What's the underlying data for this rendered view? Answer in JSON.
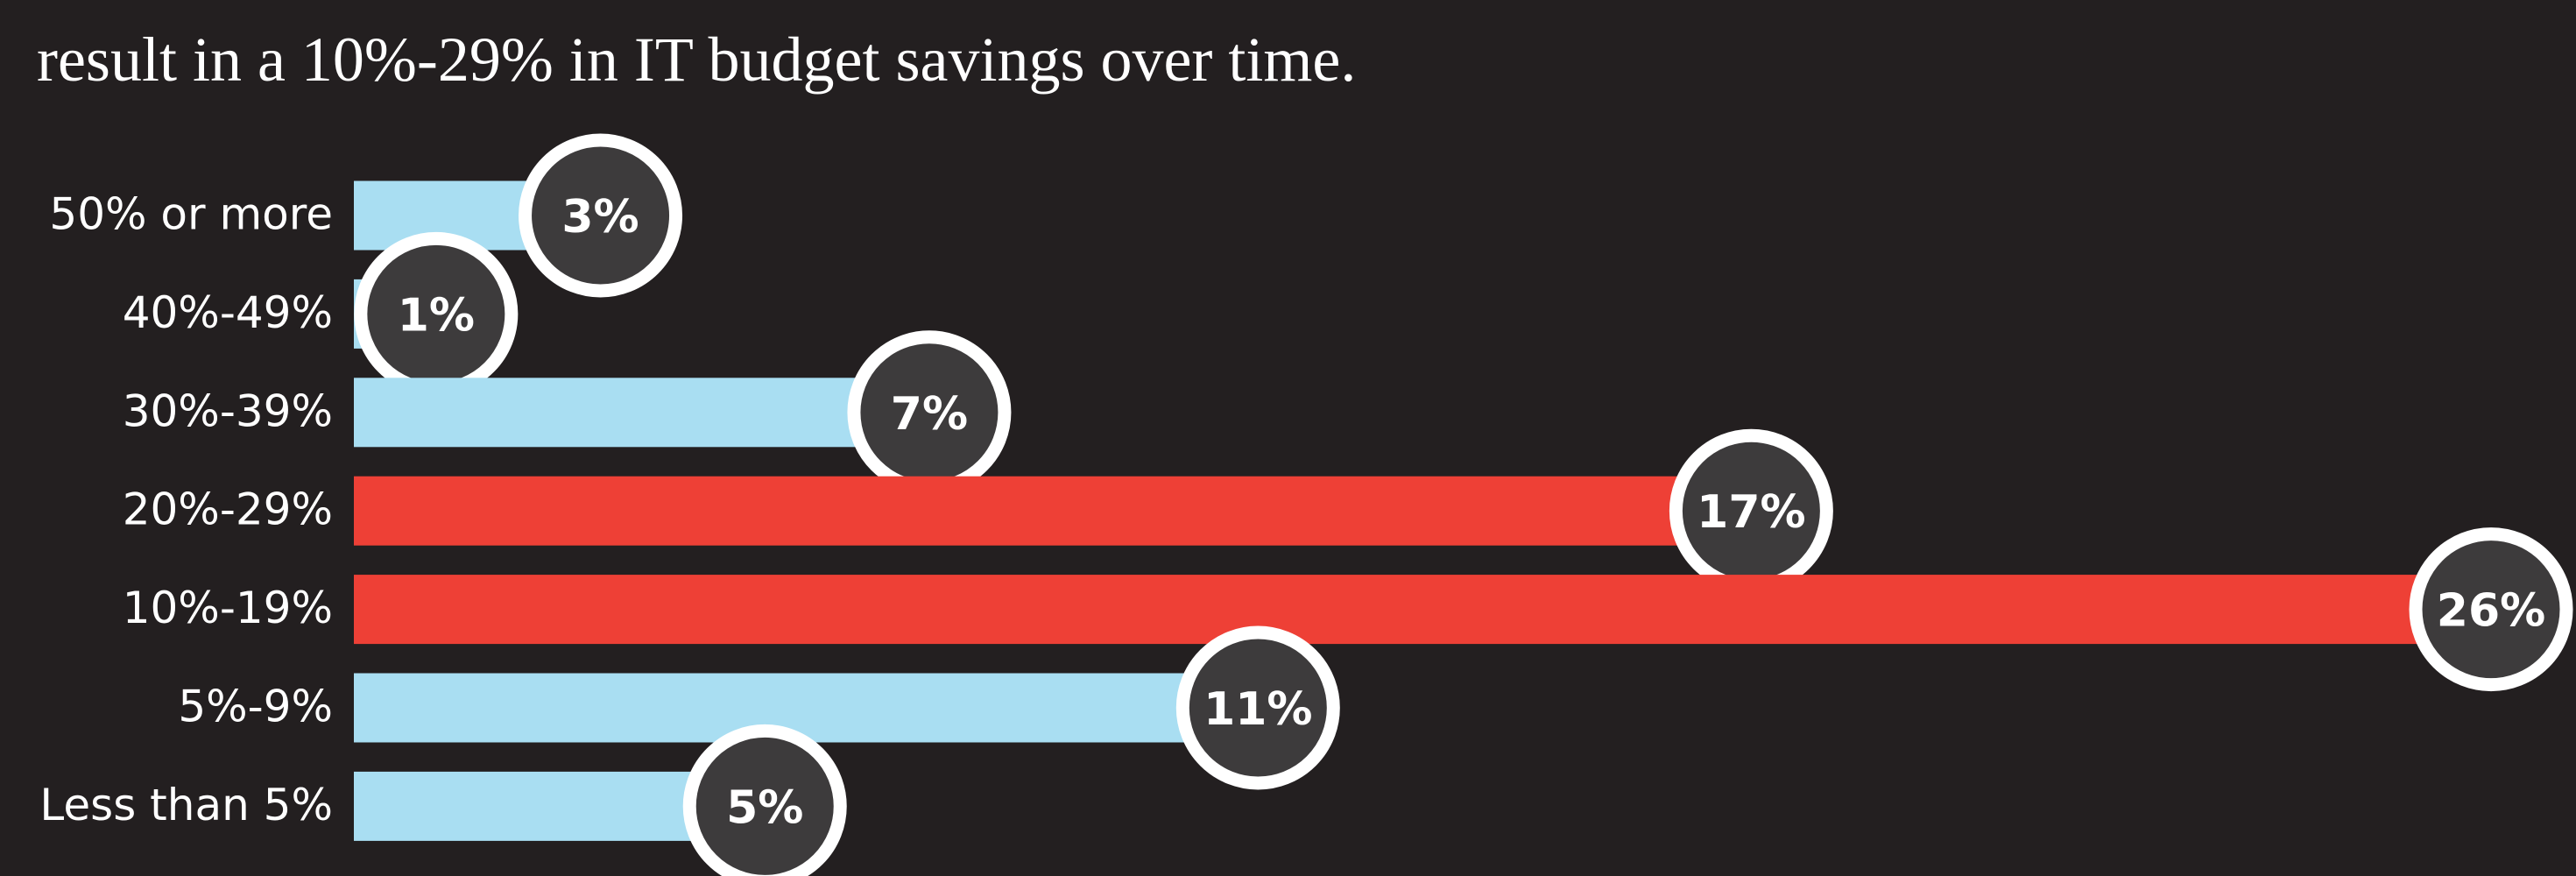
{
  "chart_data": {
    "type": "bar",
    "orientation": "horizontal",
    "subtitle": "result in a 10%-29% in IT budget savings over time.",
    "categories": [
      "50% or more",
      "40%-49%",
      "30%-39%",
      "20%-29%",
      "10%-19%",
      "5%-9%",
      "Less than 5%"
    ],
    "values": [
      3,
      1,
      7,
      17,
      26,
      11,
      5
    ],
    "value_labels": [
      "3%",
      "1%",
      "7%",
      "17%",
      "26%",
      "11%",
      "5%"
    ],
    "colors": [
      "#a9def2",
      "#a9def2",
      "#a9def2",
      "#ee4036",
      "#ee4036",
      "#a9def2",
      "#a9def2"
    ]
  }
}
